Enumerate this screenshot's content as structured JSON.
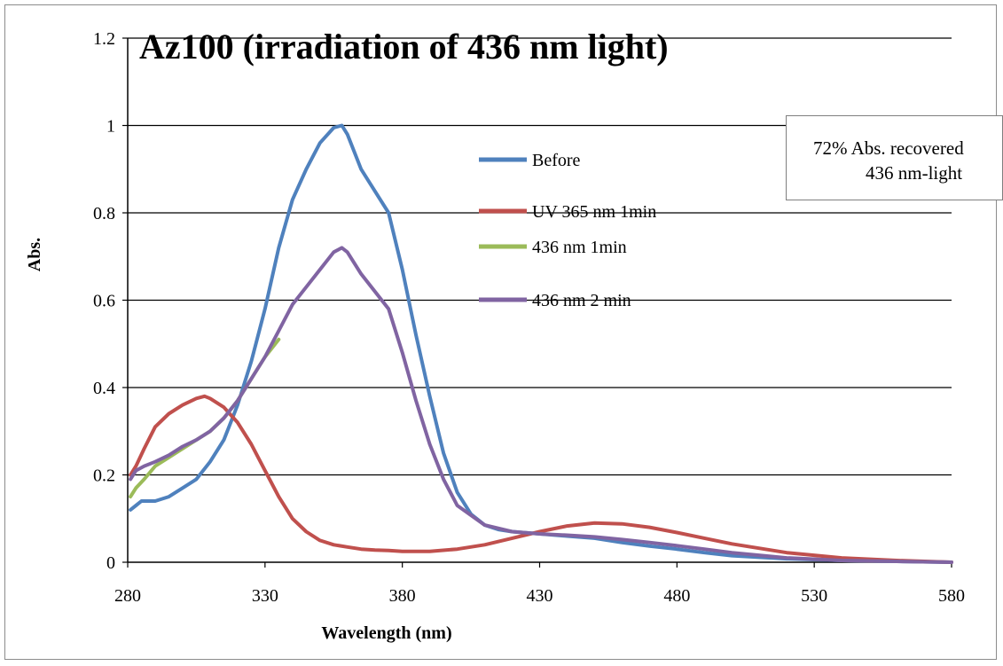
{
  "chart_data": {
    "type": "line",
    "title": "Az100 (irradiation of 436 nm light)",
    "xlabel": "Wavelength (nm)",
    "ylabel": "Abs.",
    "xlim": [
      280,
      580
    ],
    "ylim": [
      0,
      1.2
    ],
    "xticks": [
      "280",
      "330",
      "380",
      "430",
      "480",
      "530",
      "580"
    ],
    "yticks": [
      "0",
      "0.2",
      "0.4",
      "0.6",
      "0.8",
      "1",
      "1.2"
    ],
    "grid": "horizontal",
    "legend_position": "center-right",
    "annotation": {
      "line1": "72% Abs. recovered",
      "line2": "436 nm-light"
    },
    "series": [
      {
        "name": "Before",
        "color": "#4f81bd",
        "x": [
          281,
          283,
          285,
          288,
          290,
          295,
          300,
          305,
          310,
          315,
          320,
          325,
          330,
          335,
          340,
          345,
          350,
          355,
          358,
          360,
          365,
          370,
          375,
          380,
          385,
          390,
          395,
          400,
          405,
          410,
          415,
          420,
          430,
          440,
          450,
          460,
          470,
          480,
          490,
          500,
          520,
          540,
          560,
          580
        ],
        "y": [
          0.12,
          0.13,
          0.14,
          0.14,
          0.14,
          0.15,
          0.17,
          0.19,
          0.23,
          0.28,
          0.36,
          0.46,
          0.58,
          0.72,
          0.83,
          0.9,
          0.96,
          0.995,
          1.0,
          0.98,
          0.9,
          0.85,
          0.8,
          0.67,
          0.52,
          0.38,
          0.25,
          0.16,
          0.11,
          0.085,
          0.075,
          0.07,
          0.065,
          0.06,
          0.055,
          0.045,
          0.037,
          0.03,
          0.022,
          0.015,
          0.008,
          0.004,
          0.002,
          0.0
        ]
      },
      {
        "name": "UV 365 nm 1min",
        "color": "#c0504d",
        "x": [
          281,
          283,
          286,
          290,
          295,
          300,
          305,
          308,
          310,
          315,
          320,
          325,
          330,
          335,
          340,
          345,
          350,
          355,
          360,
          365,
          370,
          375,
          380,
          385,
          390,
          400,
          410,
          420,
          430,
          440,
          450,
          460,
          470,
          480,
          490,
          500,
          520,
          540,
          560,
          580
        ],
        "y": [
          0.2,
          0.22,
          0.26,
          0.31,
          0.34,
          0.36,
          0.375,
          0.38,
          0.375,
          0.355,
          0.32,
          0.27,
          0.21,
          0.15,
          0.1,
          0.07,
          0.05,
          0.04,
          0.035,
          0.03,
          0.028,
          0.027,
          0.025,
          0.025,
          0.025,
          0.03,
          0.04,
          0.055,
          0.07,
          0.083,
          0.09,
          0.088,
          0.08,
          0.068,
          0.055,
          0.042,
          0.022,
          0.01,
          0.004,
          0.0
        ]
      },
      {
        "name": "436 nm 1min",
        "color": "#9bbb59",
        "x": [
          281,
          283,
          286,
          290,
          295,
          300,
          305,
          310,
          315,
          320,
          325,
          330,
          335
        ],
        "y": [
          0.15,
          0.17,
          0.19,
          0.22,
          0.24,
          0.26,
          0.28,
          0.3,
          0.33,
          0.37,
          0.42,
          0.47,
          0.51
        ]
      },
      {
        "name": "436 nm 2 min",
        "color": "#8064a2",
        "x": [
          281,
          283,
          286,
          290,
          295,
          300,
          305,
          310,
          315,
          320,
          325,
          330,
          335,
          340,
          345,
          350,
          355,
          358,
          360,
          365,
          370,
          375,
          380,
          385,
          390,
          395,
          400,
          410,
          420,
          430,
          440,
          450,
          460,
          470,
          480,
          490,
          500,
          520,
          540,
          560,
          580
        ],
        "y": [
          0.19,
          0.21,
          0.22,
          0.23,
          0.245,
          0.265,
          0.28,
          0.3,
          0.33,
          0.37,
          0.42,
          0.47,
          0.53,
          0.59,
          0.63,
          0.67,
          0.71,
          0.72,
          0.71,
          0.66,
          0.62,
          0.58,
          0.48,
          0.37,
          0.27,
          0.19,
          0.13,
          0.085,
          0.07,
          0.065,
          0.062,
          0.058,
          0.052,
          0.045,
          0.038,
          0.03,
          0.022,
          0.01,
          0.004,
          0.002,
          0.0
        ]
      }
    ]
  }
}
